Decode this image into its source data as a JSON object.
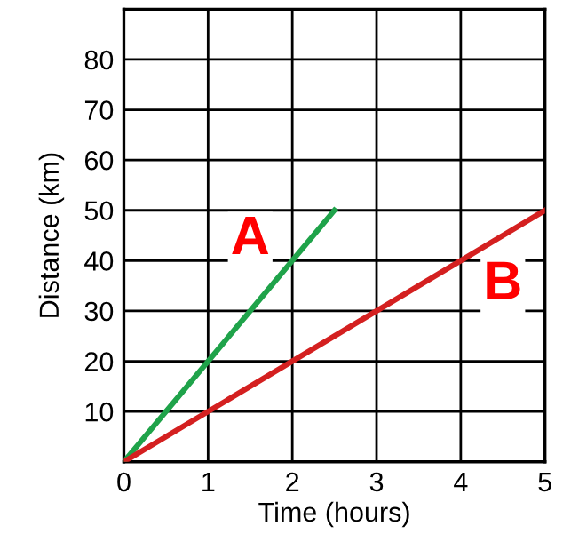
{
  "chart_data": {
    "type": "line",
    "xlabel": "Time (hours)",
    "ylabel": "Distance (km)",
    "series": [
      {
        "color": "#1fa34a",
        "x": [
          0,
          2.5
        ],
        "values": [
          0,
          50
        ]
      },
      {
        "color": "#d42020",
        "x": [
          0,
          5
        ],
        "values": [
          0,
          50
        ]
      }
    ],
    "xlim": [
      0,
      5
    ],
    "ylim": [
      0,
      90
    ],
    "xticks": [
      0,
      1,
      2,
      3,
      4,
      5
    ],
    "yticks": [
      {
        "value": 0,
        "label": null
      },
      10,
      20,
      30,
      40,
      50,
      60,
      70,
      80,
      {
        "value": 90,
        "label": null
      }
    ],
    "grid": true,
    "marker": "none",
    "line_style": "solid",
    "annotations": [
      "A",
      "B"
    ]
  }
}
